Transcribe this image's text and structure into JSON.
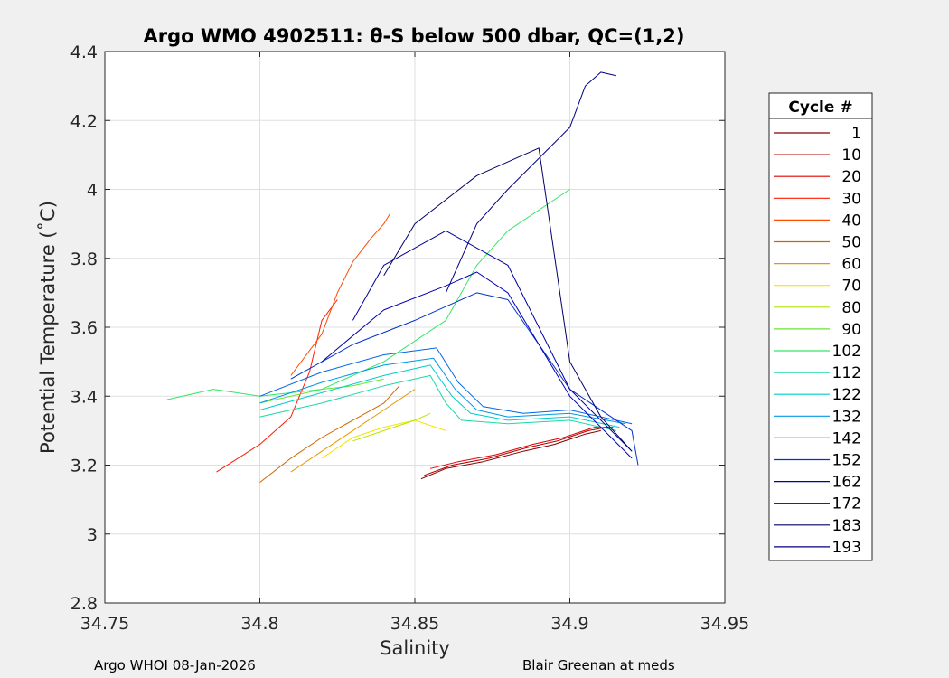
{
  "chart_data": {
    "type": "line",
    "title": "Argo WMO 4902511: θ-S below 500 dbar,  QC=(1,2)",
    "xlabel": "Salinity",
    "ylabel": "Potential Temperature (˚C)",
    "xlim": [
      34.75,
      34.95
    ],
    "ylim": [
      2.8,
      4.4
    ],
    "xticks": [
      "34.75",
      "34.8",
      "34.85",
      "34.9",
      "34.95"
    ],
    "yticks": [
      "2.8",
      "3",
      "3.2",
      "3.4",
      "3.6",
      "3.8",
      "4",
      "4.2",
      "4.4"
    ],
    "grid": true,
    "legend_title": "Cycle #",
    "legend_placement": "right",
    "series": [
      {
        "name": "1",
        "color": "#800000",
        "x": [
          34.852,
          34.86,
          34.872,
          34.885,
          34.895,
          34.905,
          34.91
        ],
        "y": [
          3.16,
          3.19,
          3.21,
          3.24,
          3.26,
          3.29,
          3.3
        ]
      },
      {
        "name": "10",
        "color": "#b00000",
        "x": [
          34.853,
          34.862,
          34.874,
          34.886,
          34.896,
          34.906,
          34.912
        ],
        "y": [
          3.17,
          3.2,
          3.22,
          3.25,
          3.27,
          3.3,
          3.31
        ]
      },
      {
        "name": "20",
        "color": "#e00000",
        "x": [
          34.855,
          34.864,
          34.876,
          34.888,
          34.898,
          34.908,
          34.914
        ],
        "y": [
          3.19,
          3.21,
          3.23,
          3.26,
          3.28,
          3.31,
          3.31
        ]
      },
      {
        "name": "30",
        "color": "#ff1a00",
        "x": [
          34.786,
          34.8,
          34.81,
          34.816,
          34.82,
          34.825
        ],
        "y": [
          3.18,
          3.26,
          3.34,
          3.47,
          3.62,
          3.68
        ]
      },
      {
        "name": "40",
        "color": "#ff4d00",
        "x": [
          34.81,
          34.82,
          34.825,
          34.83,
          34.836,
          34.84,
          34.842
        ],
        "y": [
          3.46,
          3.58,
          3.7,
          3.79,
          3.86,
          3.9,
          3.93
        ]
      },
      {
        "name": "50",
        "color": "#cc6600",
        "x": [
          34.8,
          34.81,
          34.82,
          34.83,
          34.84,
          34.845
        ],
        "y": [
          3.15,
          3.22,
          3.28,
          3.33,
          3.38,
          3.43
        ]
      },
      {
        "name": "60",
        "color": "#e69900",
        "x": [
          34.81,
          34.82,
          34.83,
          34.84,
          34.85
        ],
        "y": [
          3.18,
          3.24,
          3.3,
          3.36,
          3.42
        ]
      },
      {
        "name": "70",
        "color": "#f2e600",
        "x": [
          34.82,
          34.83,
          34.84,
          34.85,
          34.86
        ],
        "y": [
          3.22,
          3.28,
          3.31,
          3.33,
          3.3
        ]
      },
      {
        "name": "80",
        "color": "#b3e600",
        "x": [
          34.83,
          34.84,
          34.85,
          34.855
        ],
        "y": [
          3.27,
          3.3,
          3.33,
          3.35
        ]
      },
      {
        "name": "90",
        "color": "#66e633",
        "x": [
          34.8,
          34.81,
          34.82,
          34.83,
          34.84
        ],
        "y": [
          3.38,
          3.4,
          3.42,
          3.43,
          3.45
        ]
      },
      {
        "name": "102",
        "color": "#33e666",
        "x": [
          34.77,
          34.785,
          34.8,
          34.82,
          34.84,
          34.86,
          34.87,
          34.88,
          34.9
        ],
        "y": [
          3.39,
          3.42,
          3.4,
          3.42,
          3.5,
          3.62,
          3.78,
          3.88,
          4.0
        ]
      },
      {
        "name": "112",
        "color": "#1ad9a6",
        "x": [
          34.8,
          34.82,
          34.84,
          34.855,
          34.86,
          34.865,
          34.88,
          34.9,
          34.915
        ],
        "y": [
          3.34,
          3.38,
          3.43,
          3.46,
          3.38,
          3.33,
          3.32,
          3.33,
          3.3
        ]
      },
      {
        "name": "122",
        "color": "#00cccc",
        "x": [
          34.8,
          34.82,
          34.84,
          34.855,
          34.862,
          34.868,
          34.88,
          34.9,
          34.916
        ],
        "y": [
          3.36,
          3.41,
          3.46,
          3.49,
          3.4,
          3.35,
          3.33,
          3.34,
          3.31
        ]
      },
      {
        "name": "132",
        "color": "#0099e6",
        "x": [
          34.8,
          34.82,
          34.84,
          34.856,
          34.863,
          34.87,
          34.88,
          34.9,
          34.918
        ],
        "y": [
          3.38,
          3.44,
          3.49,
          3.51,
          3.42,
          3.36,
          3.34,
          3.35,
          3.32
        ]
      },
      {
        "name": "142",
        "color": "#0066e6",
        "x": [
          34.8,
          34.82,
          34.84,
          34.857,
          34.864,
          34.872,
          34.885,
          34.9,
          34.92
        ],
        "y": [
          3.4,
          3.47,
          3.52,
          3.54,
          3.44,
          3.37,
          3.35,
          3.36,
          3.32
        ]
      },
      {
        "name": "152",
        "color": "#0033cc",
        "x": [
          34.81,
          34.83,
          34.85,
          34.86,
          34.87,
          34.88,
          34.9,
          34.92,
          34.922
        ],
        "y": [
          3.45,
          3.55,
          3.62,
          3.66,
          3.7,
          3.68,
          3.42,
          3.3,
          3.2
        ]
      },
      {
        "name": "162",
        "color": "#0000b3",
        "x": [
          34.82,
          34.84,
          34.86,
          34.87,
          34.88,
          34.9,
          34.92
        ],
        "y": [
          3.5,
          3.65,
          3.72,
          3.76,
          3.7,
          3.4,
          3.22
        ]
      },
      {
        "name": "172",
        "color": "#000099",
        "x": [
          34.83,
          34.84,
          34.86,
          34.88,
          34.9,
          34.92
        ],
        "y": [
          3.62,
          3.78,
          3.88,
          3.78,
          3.42,
          3.24
        ]
      },
      {
        "name": "183",
        "color": "#000066",
        "x": [
          34.84,
          34.85,
          34.87,
          34.89,
          34.9,
          34.91,
          34.92
        ],
        "y": [
          3.75,
          3.9,
          4.04,
          4.12,
          3.5,
          3.34,
          3.24
        ]
      },
      {
        "name": "193",
        "color": "#000080",
        "x": [
          34.86,
          34.87,
          34.88,
          34.9,
          34.905,
          34.91,
          34.915
        ],
        "y": [
          3.7,
          3.9,
          4.0,
          4.18,
          4.3,
          4.34,
          4.33
        ]
      }
    ]
  },
  "footer": {
    "left": "Argo WHOI 08-Jan-2026",
    "right": "Blair Greenan at meds"
  }
}
